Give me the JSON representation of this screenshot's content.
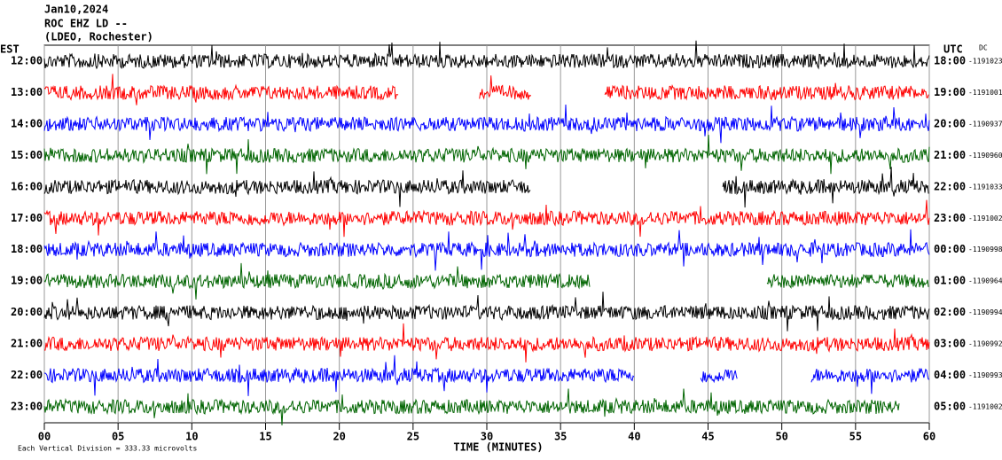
{
  "chart_data": {
    "type": "helicorder",
    "title": "Jan10,2024",
    "station": "ROC EHZ LD --",
    "network": "(LDEO, Rochester)",
    "left_axis_label": "EST",
    "right_axis_label": "UTC",
    "offset_label": "DC",
    "xlabel": "TIME (MINUTES)",
    "scale_note": "Each Vertical Division =  333.33 microvolts",
    "xlim": [
      0,
      60
    ],
    "xticks": [
      {
        "value": 0,
        "label": "00"
      },
      {
        "value": 5,
        "label": "05"
      },
      10,
      15,
      20,
      25,
      30,
      35,
      40,
      45,
      50,
      55,
      60
    ],
    "grid": true,
    "rows": [
      {
        "est": "12:00",
        "utc": "18:00",
        "dc": -1191023,
        "color": "#000000",
        "segments": [
          [
            0,
            60
          ]
        ]
      },
      {
        "est": "13:00",
        "utc": "19:00",
        "dc": -1191001,
        "color": "#ff0000",
        "segments": [
          [
            0,
            24
          ],
          [
            29.5,
            33
          ],
          [
            38,
            60
          ]
        ]
      },
      {
        "est": "14:00",
        "utc": "20:00",
        "dc": -1190937,
        "color": "#0000ff",
        "segments": [
          [
            0,
            60
          ]
        ]
      },
      {
        "est": "15:00",
        "utc": "21:00",
        "dc": -1190960,
        "color": "#006400",
        "segments": [
          [
            0,
            60
          ]
        ]
      },
      {
        "est": "16:00",
        "utc": "22:00",
        "dc": -1191033,
        "color": "#000000",
        "segments": [
          [
            0,
            33
          ],
          [
            46,
            60
          ]
        ]
      },
      {
        "est": "17:00",
        "utc": "23:00",
        "dc": -1191002,
        "color": "#ff0000",
        "segments": [
          [
            0,
            60
          ]
        ]
      },
      {
        "est": "18:00",
        "utc": "00:00",
        "dc": -1190998,
        "color": "#0000ff",
        "segments": [
          [
            0,
            60
          ]
        ]
      },
      {
        "est": "19:00",
        "utc": "01:00",
        "dc": -1190964,
        "color": "#006400",
        "segments": [
          [
            0,
            37
          ],
          [
            49,
            60
          ]
        ]
      },
      {
        "est": "20:00",
        "utc": "02:00",
        "dc": -1190994,
        "color": "#000000",
        "segments": [
          [
            0,
            60
          ]
        ]
      },
      {
        "est": "21:00",
        "utc": "03:00",
        "dc": -1190992,
        "color": "#ff0000",
        "segments": [
          [
            0,
            60
          ]
        ]
      },
      {
        "est": "22:00",
        "utc": "04:00",
        "dc": -1190993,
        "color": "#0000ff",
        "segments": [
          [
            0,
            40
          ],
          [
            44.5,
            47
          ],
          [
            52,
            60
          ]
        ]
      },
      {
        "est": "23:00",
        "utc": "05:00",
        "dc": -1191002,
        "color": "#006400",
        "segments": [
          [
            0,
            58
          ]
        ]
      }
    ]
  }
}
